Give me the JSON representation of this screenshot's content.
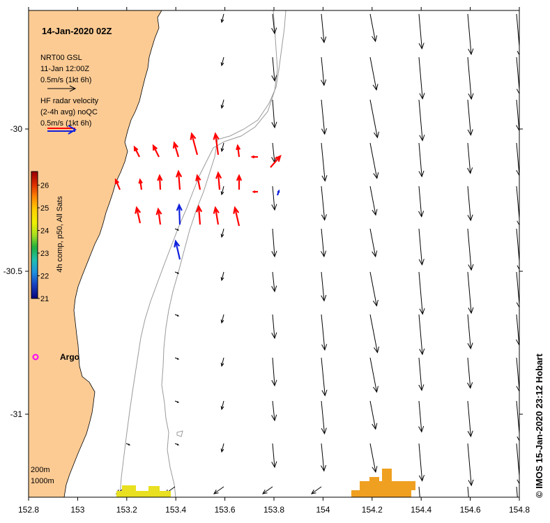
{
  "title": "14-Jan-2020 02Z",
  "model_legend": {
    "line1": "NRT00 GSL",
    "line2": "11-Jan 12:00Z",
    "scale": "0.5m/s (1kt 6h)"
  },
  "radar_legend": {
    "line1": "HF radar velocity",
    "line2": "(2-4h avg) noQC",
    "scale": "0.5m/s (1kt 6h)"
  },
  "colorbar": {
    "label": "4h comp, p50, All Sats",
    "ticks": [
      "21",
      "22",
      "23",
      "24",
      "25",
      "26"
    ],
    "min": 21,
    "max": 26.6
  },
  "argo": {
    "label": "Argo",
    "lon": 152.83,
    "lat": -30.78
  },
  "isobaths": {
    "shallow": "200m",
    "deep": "1000m"
  },
  "credit": "© IMOS 15-Jan-2020 23:12 Hobart",
  "axes": {
    "x_ticks": [
      "152.8",
      "153",
      "153.2",
      "153.4",
      "153.6",
      "153.8",
      "154",
      "154.2",
      "154.4",
      "154.6",
      "154.8"
    ],
    "y_ticks": [
      "-30",
      "-30.5",
      "-31"
    ],
    "lon_range": [
      152.8,
      154.8
    ],
    "lat_range": [
      -31.3,
      -29.58
    ]
  },
  "colors": {
    "land": "#fccb94",
    "model_arrow": "#000000",
    "radar_red": "#ff0000",
    "radar_blue": "#1020dd",
    "argo": "#ff00ff",
    "isobath": "#9a9a9a",
    "sst_warm": "#f0a020",
    "sst_yellow": "#e8e020"
  }
}
